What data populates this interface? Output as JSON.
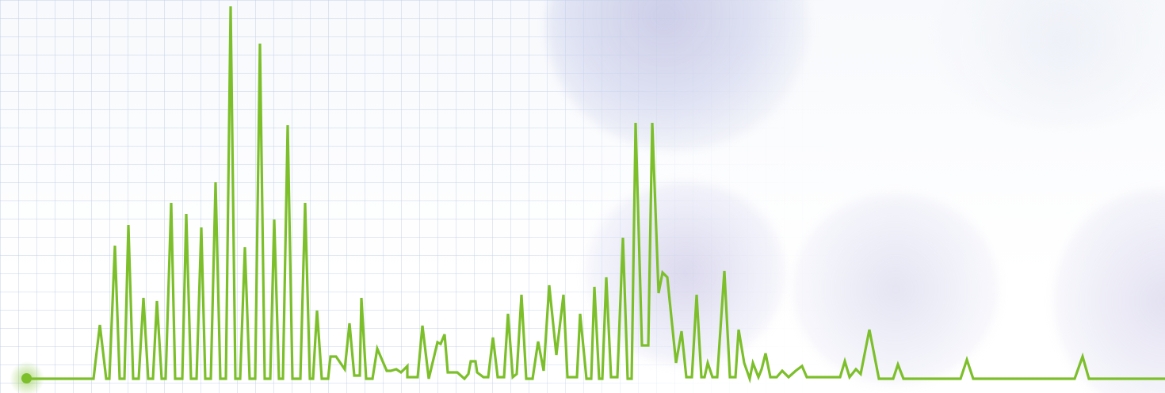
{
  "scene": {
    "description_name": "spectrum-waveform-photo",
    "colors": {
      "line": "#7cbf2a",
      "grid": "#b4c8e6",
      "blob": "#aeaad7"
    }
  },
  "signal": {
    "baseline": 478,
    "points": [
      [
        36,
        478
      ],
      [
        118,
        478
      ],
      [
        126,
        410
      ],
      [
        134,
        478
      ],
      [
        138,
        478
      ],
      [
        145,
        310
      ],
      [
        151,
        478
      ],
      [
        157,
        478
      ],
      [
        162,
        284
      ],
      [
        168,
        478
      ],
      [
        175,
        478
      ],
      [
        181,
        376
      ],
      [
        187,
        478
      ],
      [
        193,
        478
      ],
      [
        198,
        380
      ],
      [
        204,
        478
      ],
      [
        209,
        478
      ],
      [
        216,
        256
      ],
      [
        221,
        478
      ],
      [
        230,
        478
      ],
      [
        235,
        270
      ],
      [
        241,
        478
      ],
      [
        248,
        478
      ],
      [
        254,
        287
      ],
      [
        259,
        478
      ],
      [
        266,
        478
      ],
      [
        272,
        230
      ],
      [
        278,
        478
      ],
      [
        285,
        478
      ],
      [
        291,
        8
      ],
      [
        297,
        478
      ],
      [
        303,
        478
      ],
      [
        309,
        312
      ],
      [
        315,
        478
      ],
      [
        322,
        478
      ],
      [
        328,
        55
      ],
      [
        334,
        478
      ],
      [
        341,
        478
      ],
      [
        346,
        277
      ],
      [
        352,
        478
      ],
      [
        357,
        478
      ],
      [
        363,
        158
      ],
      [
        369,
        478
      ],
      [
        379,
        478
      ],
      [
        385,
        256
      ],
      [
        391,
        478
      ],
      [
        395,
        478
      ],
      [
        400,
        392
      ],
      [
        406,
        478
      ],
      [
        414,
        478
      ],
      [
        417,
        450
      ],
      [
        424,
        450
      ],
      [
        435,
        466
      ],
      [
        441,
        408
      ],
      [
        447,
        474
      ],
      [
        454,
        474
      ],
      [
        456,
        376
      ],
      [
        462,
        478
      ],
      [
        470,
        478
      ],
      [
        476,
        440
      ],
      [
        488,
        468
      ],
      [
        493,
        468
      ],
      [
        500,
        466
      ],
      [
        506,
        470
      ],
      [
        514,
        462
      ],
      [
        514,
        476
      ],
      [
        527,
        476
      ],
      [
        533,
        411
      ],
      [
        541,
        478
      ],
      [
        552,
        432
      ],
      [
        556,
        434
      ],
      [
        561,
        422
      ],
      [
        565,
        470
      ],
      [
        577,
        470
      ],
      [
        586,
        478
      ],
      [
        591,
        472
      ],
      [
        594,
        456
      ],
      [
        600,
        456
      ],
      [
        602,
        470
      ],
      [
        610,
        476
      ],
      [
        616,
        476
      ],
      [
        622,
        426
      ],
      [
        628,
        476
      ],
      [
        636,
        476
      ],
      [
        641,
        396
      ],
      [
        647,
        476
      ],
      [
        652,
        472
      ],
      [
        658,
        372
      ],
      [
        664,
        478
      ],
      [
        672,
        478
      ],
      [
        679,
        431
      ],
      [
        686,
        468
      ],
      [
        693,
        360
      ],
      [
        702,
        448
      ],
      [
        711,
        372
      ],
      [
        716,
        476
      ],
      [
        728,
        476
      ],
      [
        732,
        396
      ],
      [
        740,
        478
      ],
      [
        746,
        478
      ],
      [
        750,
        362
      ],
      [
        756,
        478
      ],
      [
        760,
        478
      ],
      [
        765,
        350
      ],
      [
        771,
        476
      ],
      [
        779,
        476
      ],
      [
        786,
        300
      ],
      [
        792,
        478
      ],
      [
        797,
        478
      ],
      [
        802,
        155
      ],
      [
        810,
        436
      ],
      [
        818,
        436
      ],
      [
        823,
        155
      ],
      [
        831,
        370
      ],
      [
        836,
        344
      ],
      [
        842,
        350
      ],
      [
        853,
        458
      ],
      [
        860,
        418
      ],
      [
        866,
        476
      ],
      [
        873,
        476
      ],
      [
        879,
        372
      ],
      [
        885,
        476
      ],
      [
        889,
        476
      ],
      [
        893,
        458
      ],
      [
        899,
        476
      ],
      [
        905,
        476
      ],
      [
        914,
        342
      ],
      [
        921,
        476
      ],
      [
        928,
        476
      ],
      [
        932,
        416
      ],
      [
        939,
        458
      ],
      [
        946,
        478
      ],
      [
        950,
        458
      ],
      [
        957,
        476
      ],
      [
        961,
        466
      ],
      [
        966,
        446
      ],
      [
        972,
        476
      ],
      [
        980,
        476
      ],
      [
        987,
        468
      ],
      [
        995,
        476
      ],
      [
        1004,
        468
      ],
      [
        1012,
        462
      ],
      [
        1018,
        476
      ],
      [
        1060,
        476
      ],
      [
        1066,
        456
      ],
      [
        1072,
        476
      ],
      [
        1080,
        466
      ],
      [
        1086,
        472
      ],
      [
        1097,
        416
      ],
      [
        1109,
        478
      ],
      [
        1127,
        478
      ],
      [
        1133,
        460
      ],
      [
        1140,
        478
      ],
      [
        1212,
        478
      ],
      [
        1220,
        454
      ],
      [
        1228,
        478
      ],
      [
        1356,
        478
      ],
      [
        1366,
        450
      ],
      [
        1374,
        478
      ],
      [
        1470,
        478
      ]
    ]
  }
}
